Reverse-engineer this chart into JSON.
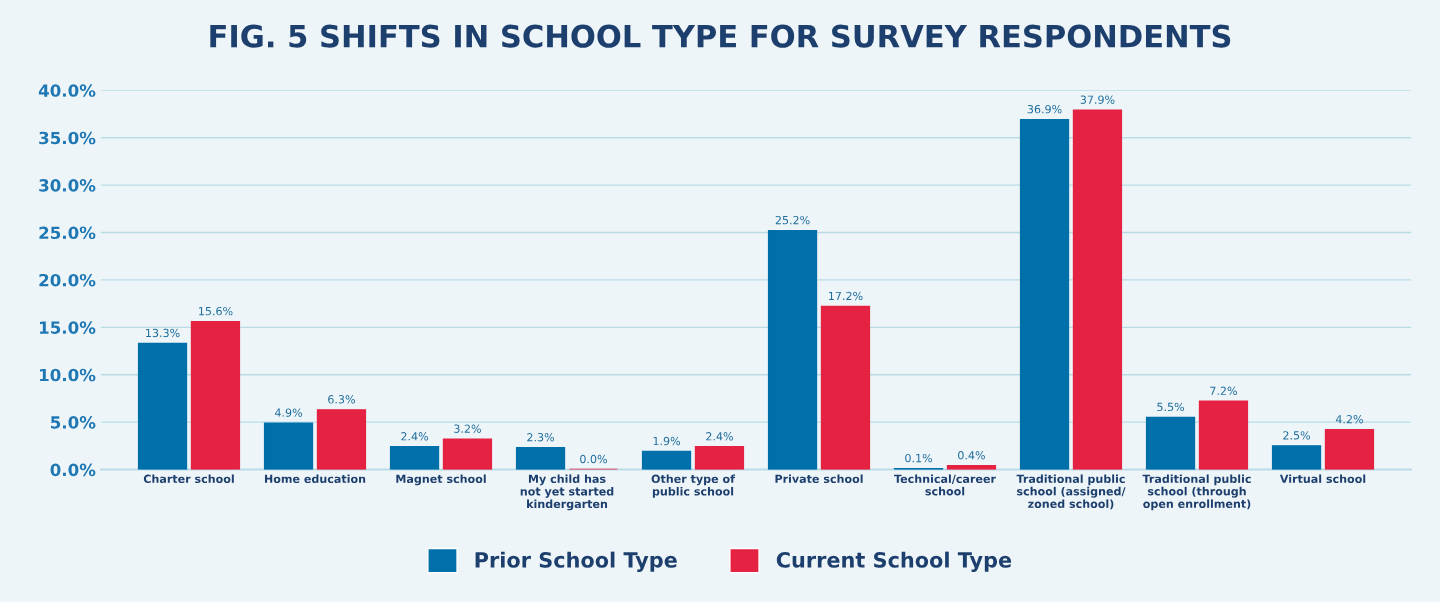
{
  "chart_data": {
    "type": "bar",
    "title": "FIG. 5 SHIFTS IN SCHOOL TYPE FOR SURVEY RESPONDENTS",
    "categories": [
      "Charter school",
      "Home education",
      "Magnet school",
      "My child has\nnot yet started\nkindergarten",
      "Other type of\npublic school",
      "Private school",
      "Technical/career\nschool",
      "Traditional public\nschool (assigned/\nzoned school)",
      "Traditional public\nschool (through\nopen enrollment)",
      "Virtual school"
    ],
    "series": [
      {
        "name": "Prior School Type",
        "color": "#0070aa",
        "values": [
          13.3,
          4.9,
          2.4,
          2.3,
          1.9,
          25.2,
          0.1,
          36.9,
          5.5,
          2.5
        ],
        "value_labels": [
          "13.3%",
          "4.9%",
          "2.4%",
          "2.3%",
          "1.9%",
          "25.2%",
          "0.1%",
          "36.9%",
          "5.5%",
          "2.5%"
        ]
      },
      {
        "name": "Current School Type",
        "color": "#e52242",
        "values": [
          15.6,
          6.3,
          3.2,
          0.0,
          2.4,
          17.2,
          0.4,
          37.9,
          7.2,
          4.2
        ],
        "value_labels": [
          "15.6%",
          "6.3%",
          "3.2%",
          "0.0%",
          "2.4%",
          "17.2%",
          "0.4%",
          "37.9%",
          "7.2%",
          "4.2%"
        ]
      }
    ],
    "ylim": [
      0,
      40
    ],
    "yticks": [
      {
        "value": 0,
        "label": "0.0%"
      },
      {
        "value": 5,
        "label": "5.0%"
      },
      {
        "value": 10,
        "label": "10.0%"
      },
      {
        "value": 15,
        "label": "15.0%"
      },
      {
        "value": 20,
        "label": "20.0%"
      },
      {
        "value": 25,
        "label": "25.0%"
      },
      {
        "value": 30,
        "label": "30.0%"
      },
      {
        "value": 35,
        "label": "35.0%"
      },
      {
        "value": 40,
        "label": "40.0%"
      }
    ],
    "grid": "y",
    "legend": "bottom"
  }
}
